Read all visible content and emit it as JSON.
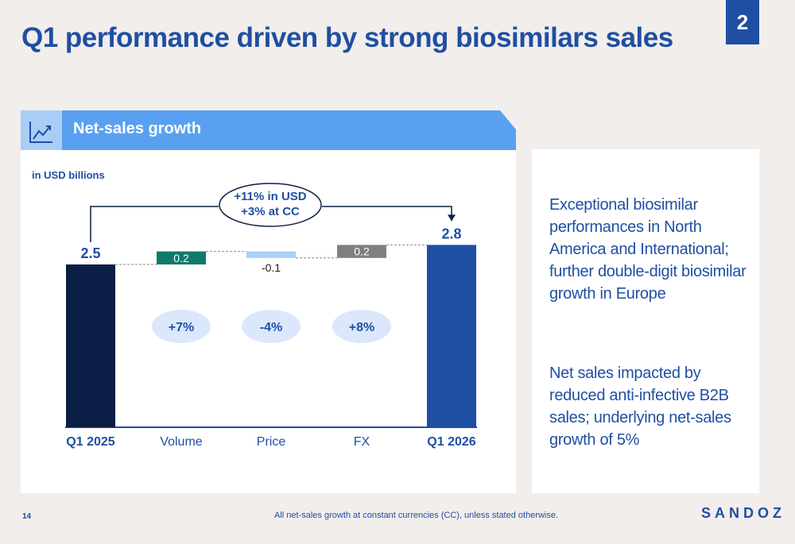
{
  "title": "Q1 performance driven by strong biosimilars sales",
  "page_badge": "2",
  "chart_header": "Net-sales growth",
  "header_icon": "trend-chart-icon",
  "footer": {
    "page_number": "14",
    "footnote": "All net-sales growth at constant currencies (CC), unless stated otherwise.",
    "logo": "SANDOZ"
  },
  "commentary": [
    "Exceptional biosimilar performances in North America and International; further double-digit biosimilar growth in Europe",
    "Net sales impacted by reduced anti-infective B2B sales; underlying net-sales growth of 5%"
  ],
  "colors": {
    "brand_blue": "#1f4fa3",
    "navy": "#0b1e45",
    "teal": "#0f7a6c",
    "light_blue": "#a9d0f5",
    "grey": "#7f7f7f",
    "header_blue": "#5aa0f0",
    "pill": "#dbe8fb"
  },
  "chart_data": {
    "type": "bar",
    "subtype": "waterfall",
    "unit_label": "in USD billions",
    "categories": [
      "Q1 2025",
      "Volume",
      "Price",
      "FX",
      "Q1 2026"
    ],
    "values": [
      2.5,
      0.2,
      -0.1,
      0.2,
      2.8
    ],
    "value_labels": [
      "2.5",
      "0.2",
      "-0.1",
      "0.2",
      "2.8"
    ],
    "bar_roles": [
      "total",
      "delta",
      "delta",
      "delta",
      "total"
    ],
    "bar_colors": [
      "#0b1e45",
      "#0f7a6c",
      "#a9d0f5",
      "#7f7f7f",
      "#1f4fa3"
    ],
    "growth_pills": [
      "",
      "+7%",
      "-4%",
      "+8%",
      ""
    ],
    "bridge_annotation": [
      "+11% in USD",
      "+3% at CC"
    ],
    "ylim": [
      0,
      3.0
    ]
  }
}
